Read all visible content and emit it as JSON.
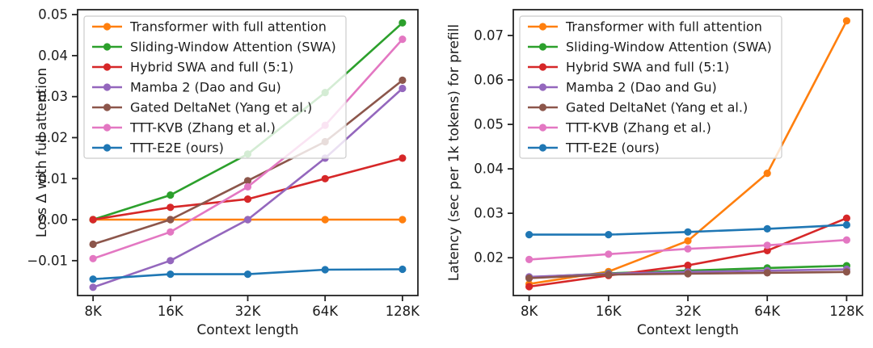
{
  "figure": {
    "background": "#ffffff",
    "text_color": "#1c1c1c",
    "spine_color": "#222222",
    "legend_fill": "rgba(255,255,255,0.8)",
    "legend_border": "#cccccc"
  },
  "chart_data": [
    {
      "id": "loss-delta",
      "type": "line",
      "title": "",
      "xlabel": "Context length",
      "ylabel": "Loss Δ with full attention",
      "x_categories": [
        "8K",
        "16K",
        "32K",
        "64K",
        "128K"
      ],
      "x_scale": "log2-equally-spaced",
      "ylim": [
        -0.0185,
        0.0512
      ],
      "yticks": [
        -0.01,
        0.0,
        0.01,
        0.02,
        0.03,
        0.04,
        0.05
      ],
      "ytick_labels": [
        "−0.01",
        "0.00",
        "0.01",
        "0.02",
        "0.03",
        "0.04",
        "0.05"
      ],
      "grid": false,
      "legend_position": "upper-left-inside",
      "series": [
        {
          "name": "Transformer with full attention",
          "color": "#ff7f0e",
          "color_name": "orange",
          "values": [
            0.0,
            0.0,
            0.0,
            0.0,
            0.0
          ]
        },
        {
          "name": "Sliding-Window Attention (SWA)",
          "color": "#2ca02c",
          "color_name": "green",
          "values": [
            0.0,
            0.006,
            0.016,
            0.031,
            0.048
          ]
        },
        {
          "name": "Hybrid SWA and full (5:1)",
          "color": "#d62728",
          "color_name": "red",
          "values": [
            0.0,
            0.003,
            0.005,
            0.01,
            0.015
          ]
        },
        {
          "name": "Mamba 2 (Dao and Gu)",
          "color": "#9467bd",
          "color_name": "purple",
          "values": [
            -0.0165,
            -0.01,
            0.0,
            0.015,
            0.032
          ]
        },
        {
          "name": "Gated DeltaNet (Yang et al.)",
          "color": "#8c564b",
          "color_name": "brown",
          "values": [
            -0.006,
            0.0,
            0.0095,
            0.019,
            0.034
          ]
        },
        {
          "name": "TTT-KVB (Zhang et al.)",
          "color": "#e377c2",
          "color_name": "pink",
          "values": [
            -0.0095,
            -0.003,
            0.008,
            0.023,
            0.044
          ]
        },
        {
          "name": "TTT-E2E (ours)",
          "color": "#1f77b4",
          "color_name": "blue",
          "values": [
            -0.0145,
            -0.0133,
            -0.0133,
            -0.0122,
            -0.0121
          ]
        }
      ]
    },
    {
      "id": "prefill-latency",
      "type": "line",
      "title": "",
      "xlabel": "Context length",
      "ylabel": "Latency (sec per 1k tokens) for prefill",
      "x_categories": [
        "8K",
        "16K",
        "32K",
        "64K",
        "128K"
      ],
      "x_scale": "log2-equally-spaced",
      "ylim": [
        0.0115,
        0.0758
      ],
      "yticks": [
        0.02,
        0.03,
        0.04,
        0.05,
        0.06,
        0.07
      ],
      "ytick_labels": [
        "0.02",
        "0.03",
        "0.04",
        "0.05",
        "0.06",
        "0.07"
      ],
      "grid": false,
      "legend_position": "upper-left-inside",
      "series": [
        {
          "name": "Transformer with full attention",
          "color": "#ff7f0e",
          "color_name": "orange",
          "values": [
            0.0141,
            0.0169,
            0.0238,
            0.039,
            0.0733
          ]
        },
        {
          "name": "Sliding-Window Attention (SWA)",
          "color": "#2ca02c",
          "color_name": "green",
          "values": [
            0.0156,
            0.0165,
            0.0171,
            0.0177,
            0.0182
          ]
        },
        {
          "name": "Hybrid SWA and full (5:1)",
          "color": "#d62728",
          "color_name": "red",
          "values": [
            0.0135,
            0.016,
            0.0183,
            0.0216,
            0.0289
          ]
        },
        {
          "name": "Mamba 2 (Dao and Gu)",
          "color": "#9467bd",
          "color_name": "purple",
          "values": [
            0.0157,
            0.0164,
            0.0168,
            0.0171,
            0.0174
          ]
        },
        {
          "name": "Gated DeltaNet (Yang et al.)",
          "color": "#8c564b",
          "color_name": "brown",
          "values": [
            0.0154,
            0.0162,
            0.0164,
            0.0166,
            0.0168
          ]
        },
        {
          "name": "TTT-KVB (Zhang et al.)",
          "color": "#e377c2",
          "color_name": "pink",
          "values": [
            0.0196,
            0.0208,
            0.022,
            0.0228,
            0.024
          ]
        },
        {
          "name": "TTT-E2E (ours)",
          "color": "#1f77b4",
          "color_name": "blue",
          "values": [
            0.0252,
            0.0252,
            0.0258,
            0.0265,
            0.0274
          ]
        }
      ]
    }
  ]
}
